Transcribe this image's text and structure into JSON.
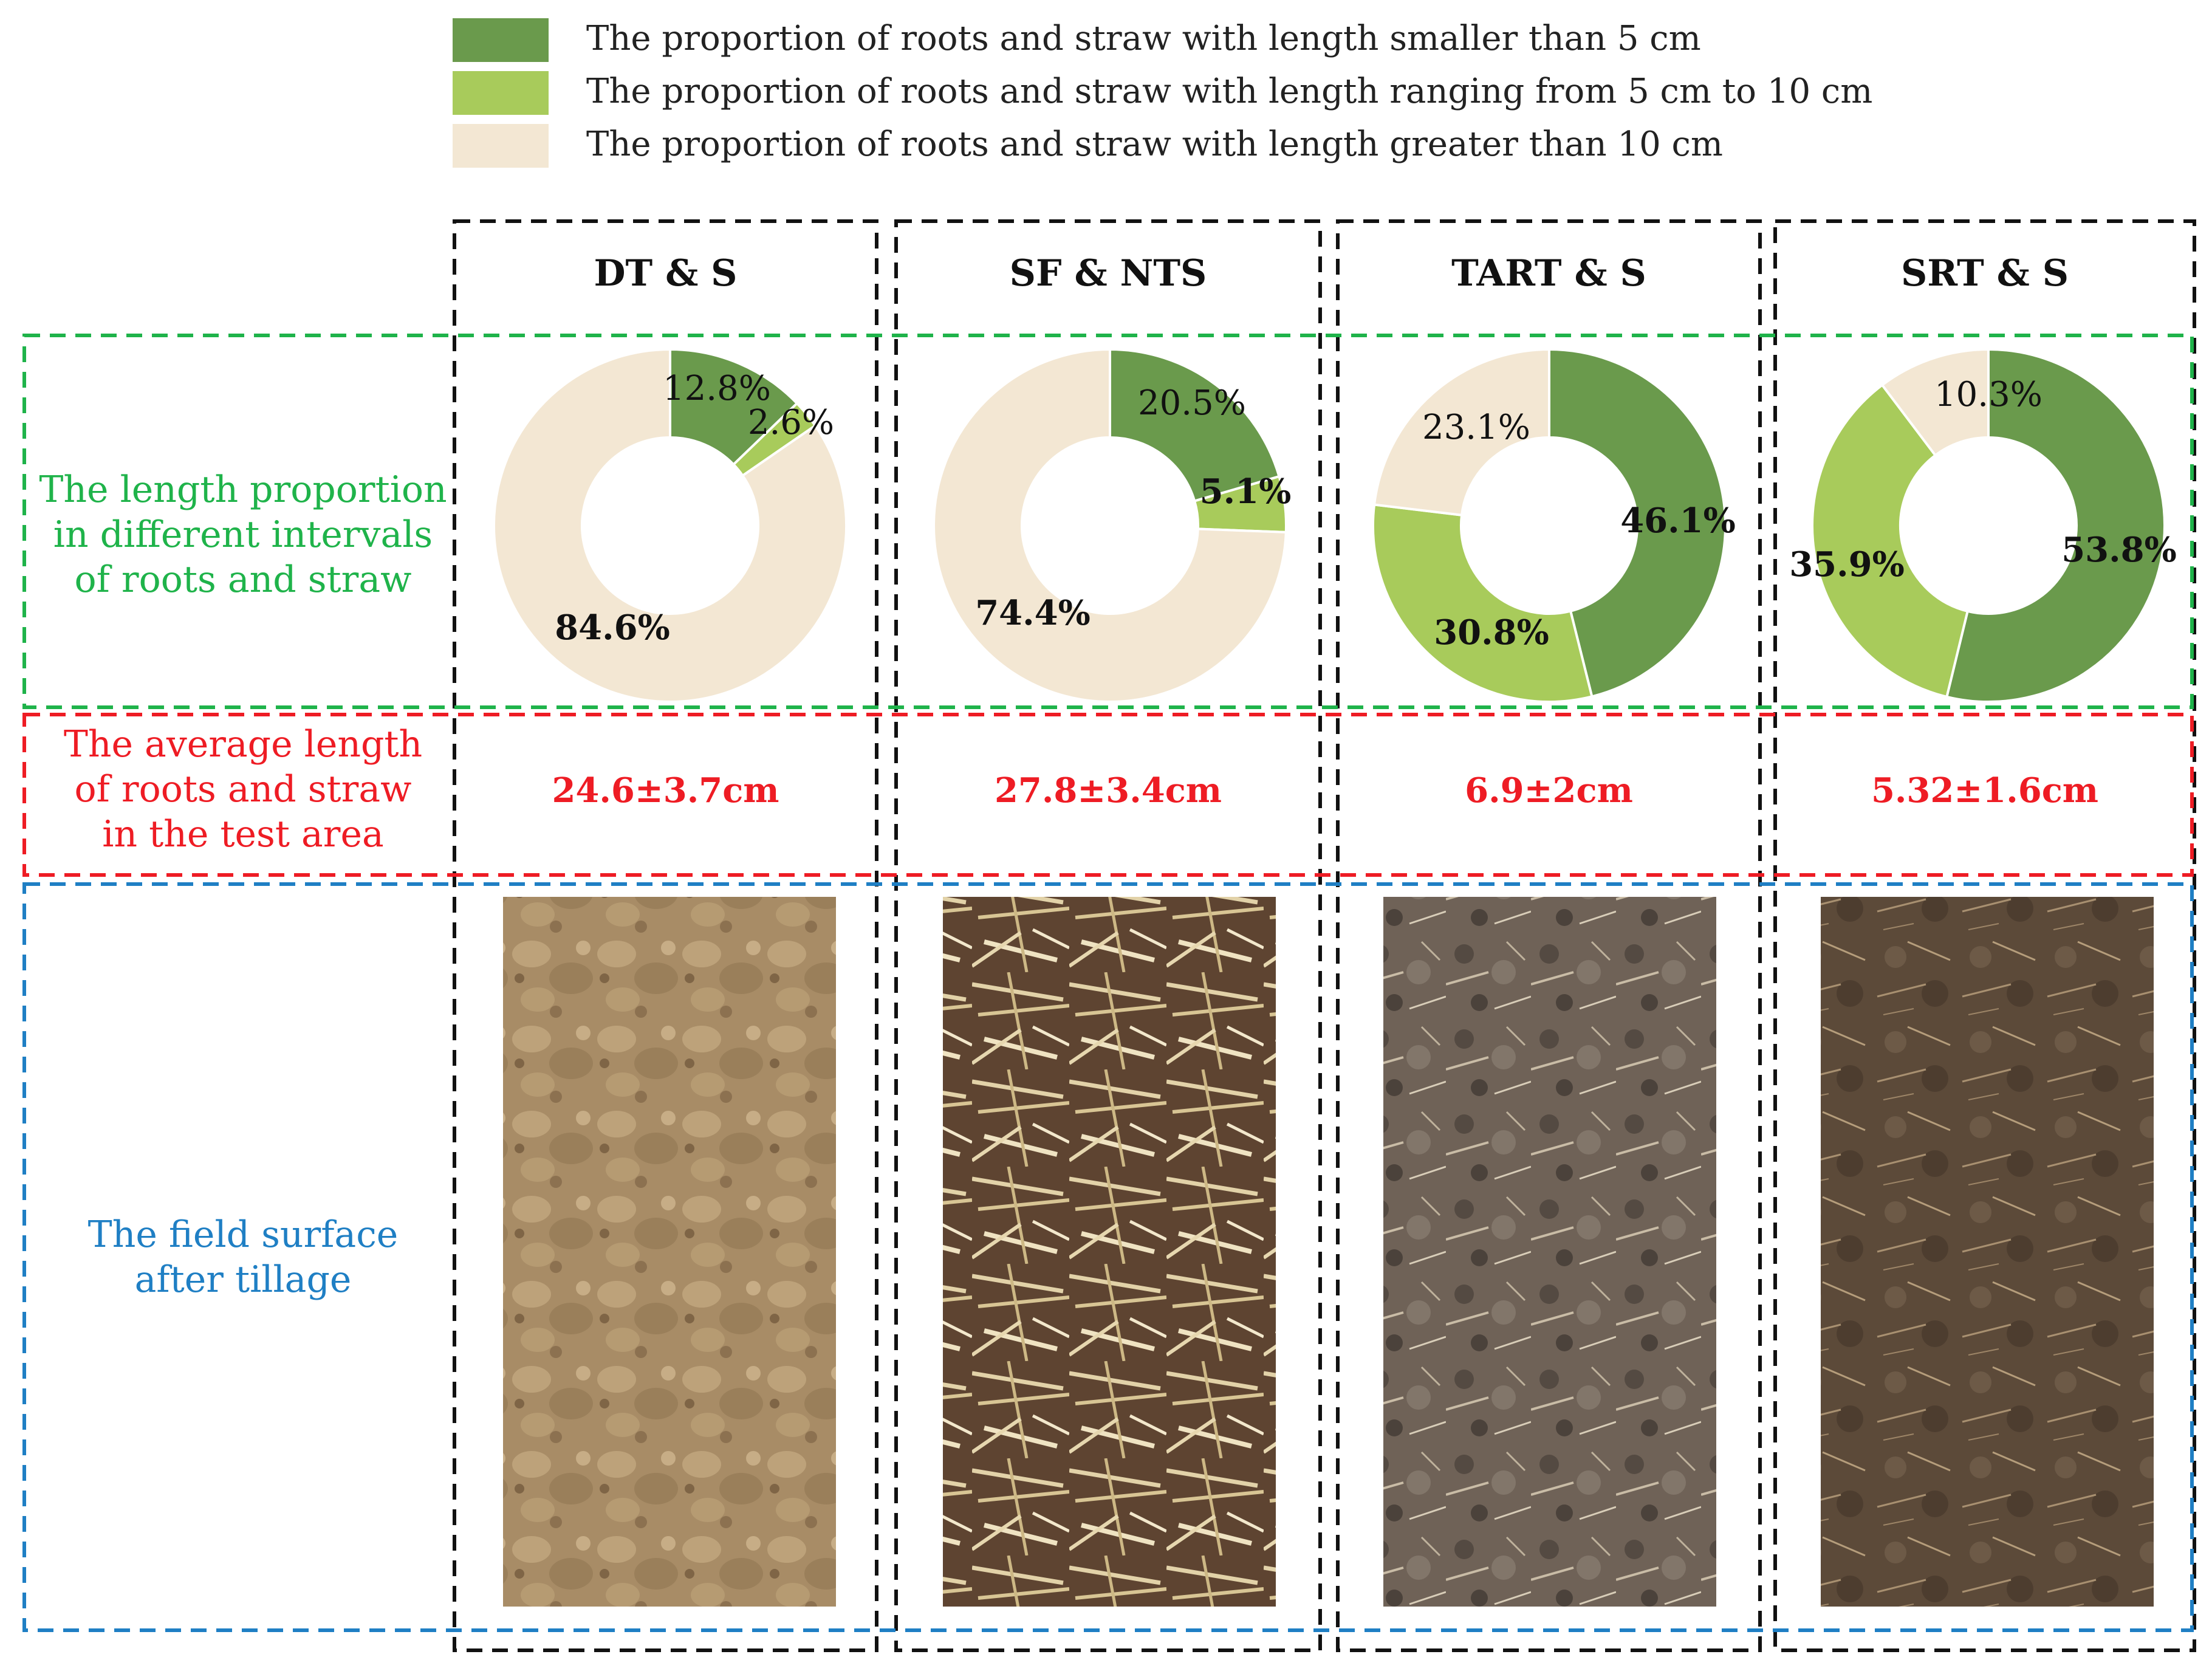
{
  "legend": [
    {
      "label": "The proportion of roots and straw with  length smaller than 5 cm",
      "color": "#6a9a4c"
    },
    {
      "label": "The proportion of roots and straw with length ranging from 5 cm to 10 cm",
      "color": "#a8cb5b"
    },
    {
      "label": "The proportion of roots and straw with length greater than 10 cm",
      "color": "#f3e7d3"
    }
  ],
  "row_labels": {
    "proportion": {
      "lines": [
        "The length proportion",
        "in different intervals",
        "of roots and straw"
      ],
      "color": "#1fb34a"
    },
    "average": {
      "lines": [
        "The average length",
        "of roots and straw",
        "in the test area"
      ],
      "color": "#ee1c24"
    },
    "surface": {
      "lines": [
        "The field surface",
        "after tillage"
      ],
      "color": "#1f7fc4"
    }
  },
  "columns": [
    {
      "name": "DT & S",
      "average": "24.6±3.7cm",
      "photo": "soil-clods-photo"
    },
    {
      "name": "SF & NTS",
      "average": "27.8±3.4cm",
      "photo": "straw-on-soil-photo"
    },
    {
      "name": "TART & S",
      "average": "6.9±2cm",
      "photo": "dark-soil-straw-photo"
    },
    {
      "name": "SRT & S",
      "average": "5.32±1.6cm",
      "photo": "mixed-soil-straw-photo"
    }
  ],
  "chart_data": [
    {
      "type": "pie",
      "title": "DT & S",
      "categories": [
        "< 5 cm",
        "5-10 cm",
        "> 10 cm"
      ],
      "values": [
        12.8,
        2.6,
        84.6
      ],
      "labels": [
        "12.8%",
        "2.6%",
        "84.6%"
      ],
      "colors": [
        "#6a9a4c",
        "#a8cb5b",
        "#f3e7d3"
      ]
    },
    {
      "type": "pie",
      "title": "SF & NTS",
      "categories": [
        "< 5 cm",
        "5-10 cm",
        "> 10 cm"
      ],
      "values": [
        20.5,
        5.1,
        74.4
      ],
      "labels": [
        "20.5%",
        "5.1%",
        "74.4%"
      ],
      "colors": [
        "#6a9a4c",
        "#a8cb5b",
        "#f3e7d3"
      ]
    },
    {
      "type": "pie",
      "title": "TART & S",
      "categories": [
        "< 5 cm",
        "5-10 cm",
        "> 10 cm"
      ],
      "values": [
        46.1,
        30.8,
        23.1
      ],
      "labels": [
        "46.1%",
        "30.8%",
        "23.1%"
      ],
      "colors": [
        "#6a9a4c",
        "#a8cb5b",
        "#f3e7d3"
      ]
    },
    {
      "type": "pie",
      "title": "SRT & S",
      "categories": [
        "< 5 cm",
        "5-10 cm",
        "> 10 cm"
      ],
      "values": [
        53.8,
        35.9,
        10.3
      ],
      "labels": [
        "53.8%",
        "35.9%",
        "10.3%"
      ],
      "colors": [
        "#6a9a4c",
        "#a8cb5b",
        "#f3e7d3"
      ]
    }
  ]
}
